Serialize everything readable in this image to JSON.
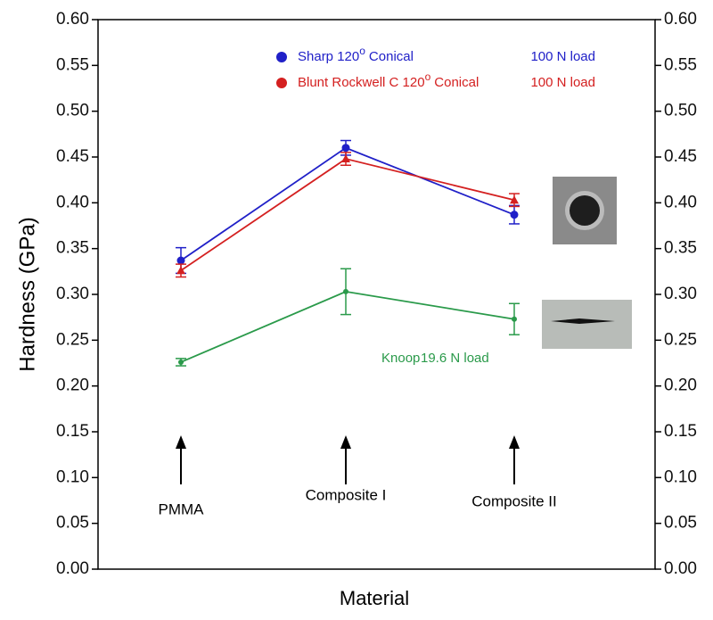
{
  "chart_data": {
    "type": "line",
    "y_label": "Hardness (GPa)",
    "x_label": "Material",
    "categories": [
      "PMMA",
      "Composite I",
      "Composite II"
    ],
    "ylim": [
      0,
      0.6
    ],
    "yticks": [
      {
        "value": 0,
        "label": "0.00"
      },
      {
        "value": 0.05,
        "label": "0.05"
      },
      {
        "value": 0.1,
        "label": "0.10"
      },
      {
        "value": 0.15,
        "label": "0.15"
      },
      {
        "value": 0.2,
        "label": "0.20"
      },
      {
        "value": 0.25,
        "label": "0.25"
      },
      {
        "value": 0.3,
        "label": "0.30"
      },
      {
        "value": 0.35,
        "label": "0.35"
      },
      {
        "value": 0.4,
        "label": "0.40"
      },
      {
        "value": 0.45,
        "label": "0.45"
      },
      {
        "value": 0.5,
        "label": "0.50"
      },
      {
        "value": 0.55,
        "label": "0.55"
      },
      {
        "value": 0.6,
        "label": "0.60"
      }
    ],
    "series": [
      {
        "name": "Sharp 120",
        "name_superscript": "o",
        "name_suffix": "Conical",
        "load": "100 N load",
        "color": "#2020c8",
        "marker": "circle",
        "values": [
          0.337,
          0.46,
          0.387
        ],
        "errors": [
          0.014,
          0.008,
          0.01
        ]
      },
      {
        "name": "Blunt Rockwell C 120",
        "name_superscript": "o",
        "name_suffix": "Conical",
        "load": "100 N load",
        "color": "#d42020",
        "marker": "triangle",
        "values": [
          0.326,
          0.448,
          0.403
        ],
        "errors": [
          0.007,
          0.007,
          0.007
        ]
      },
      {
        "name": "Knoop",
        "load": "19.6 N load",
        "color": "#2a9a4a",
        "marker": "dot",
        "values": [
          0.226,
          0.303,
          0.273
        ],
        "errors": [
          0.004,
          0.025,
          0.017
        ]
      }
    ]
  }
}
